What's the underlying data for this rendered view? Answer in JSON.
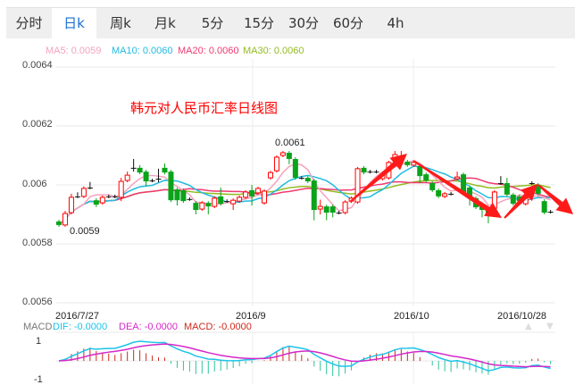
{
  "tabs": [
    {
      "label": "分时",
      "active": false
    },
    {
      "label": "日k",
      "active": true
    },
    {
      "label": "周k",
      "active": false
    },
    {
      "label": "月k",
      "active": false
    },
    {
      "label": "5分",
      "active": false
    },
    {
      "label": "15分",
      "active": false
    },
    {
      "label": "30分",
      "active": false
    },
    {
      "label": "60分",
      "active": false
    },
    {
      "label": "4h",
      "active": false
    }
  ],
  "legend": {
    "ma5": "MA5: 0.0059",
    "ma10": "MA10: 0.0060",
    "ma20": "MA20: 0.0060",
    "ma30": "MA30: 0.0060"
  },
  "colors": {
    "ma5": "#f5a3bd",
    "ma10": "#22bbe0",
    "ma20": "#ef3a72",
    "ma30": "#93bb1f",
    "up": "#ff0000",
    "down": "#0aa31a",
    "dif": "#1cc4ea",
    "dea": "#d428c8",
    "macd": "#d0281c",
    "arrow": "#ff1a1a",
    "active_tab": "#1a6fd0"
  },
  "title": "韩元对人民币汇率日线图",
  "chart_data": {
    "type": "candlestick",
    "title": "韩元对人民币汇率日线图",
    "yticks": [
      "0.0064",
      "0.0062",
      "0.006",
      "0.0058",
      "0.0056"
    ],
    "ylim": [
      0.0056,
      0.0064
    ],
    "xticks": [
      "2016/7/27",
      "2016/9",
      "2016/10",
      "2016/10/28"
    ],
    "annotations": {
      "high": "0.0061",
      "low": "0.0059"
    },
    "candles": [
      [
        0.005876,
        0.005882,
        0.005858,
        0.005864
      ],
      [
        0.005864,
        0.005912,
        0.005858,
        0.005903
      ],
      [
        0.005906,
        0.00597,
        0.0059,
        0.005958
      ],
      [
        0.005961,
        0.005975,
        0.005955,
        0.005961
      ],
      [
        0.005961,
        0.005995,
        0.005955,
        0.005988
      ],
      [
        0.005991,
        0.00601,
        0.005985,
        0.005991
      ],
      [
        0.005948,
        0.005955,
        0.005925,
        0.005933
      ],
      [
        0.005939,
        0.005964,
        0.005933,
        0.005958
      ],
      [
        0.005961,
        0.005967,
        0.005955,
        0.005961
      ],
      [
        0.005961,
        0.005967,
        0.005955,
        0.005961
      ],
      [
        0.005958,
        0.006024,
        0.005945,
        0.006012
      ],
      [
        0.006015,
        0.006045,
        0.006009,
        0.006033
      ],
      [
        0.006058,
        0.006088,
        0.006045,
        0.006058
      ],
      [
        0.006058,
        0.006067,
        0.006036,
        0.006042
      ],
      [
        0.006045,
        0.006051,
        0.005995,
        0.006012
      ],
      [
        0.006015,
        0.006021,
        0.006009,
        0.006015
      ],
      [
        0.006021,
        0.006055,
        0.006009,
        0.006021
      ],
      [
        0.006058,
        0.006073,
        0.006036,
        0.006042
      ],
      [
        0.006045,
        0.006051,
        0.005942,
        0.005948
      ],
      [
        0.005985,
        0.005991,
        0.00593,
        0.005948
      ],
      [
        0.005982,
        0.005988,
        0.005939,
        0.005945
      ],
      [
        0.005952,
        0.005958,
        0.005946,
        0.005952
      ],
      [
        0.005939,
        0.005945,
        0.0059,
        0.005915
      ],
      [
        0.005918,
        0.005945,
        0.005912,
        0.005939
      ],
      [
        0.005939,
        0.005945,
        0.0059,
        0.005927
      ],
      [
        0.005927,
        0.005961,
        0.005921,
        0.005955
      ],
      [
        0.005961,
        0.005991,
        0.00593,
        0.005936
      ],
      [
        0.005945,
        0.005951,
        0.005939,
        0.005945
      ],
      [
        0.005936,
        0.005954,
        0.005915,
        0.005948
      ],
      [
        0.005945,
        0.005964,
        0.005939,
        0.005958
      ],
      [
        0.005958,
        0.005982,
        0.005952,
        0.005976
      ],
      [
        0.005982,
        0.006,
        0.00593,
        0.005961
      ],
      [
        0.005973,
        0.005994,
        0.005967,
        0.005988
      ],
      [
        0.005939,
        0.005985,
        0.005933,
        0.005979
      ],
      [
        0.006024,
        0.006048,
        0.006018,
        0.006042
      ],
      [
        0.006048,
        0.0061,
        0.006042,
        0.006094
      ],
      [
        0.0061,
        0.006115,
        0.006094,
        0.006109
      ],
      [
        0.006109,
        0.006115,
        0.00607,
        0.006088
      ],
      [
        0.006088,
        0.006094,
        0.006018,
        0.006024
      ],
      [
        0.006024,
        0.00603,
        0.006018,
        0.006024
      ],
      [
        0.006024,
        0.00603,
        0.006006,
        0.006012
      ],
      [
        0.006015,
        0.006021,
        0.00588,
        0.005915
      ],
      [
        0.005918,
        0.00595,
        0.0059,
        0.005927
      ],
      [
        0.005927,
        0.005933,
        0.00588,
        0.005906
      ],
      [
        0.005927,
        0.005933,
        0.00589,
        0.005906
      ],
      [
        0.005906,
        0.005912,
        0.0059,
        0.005906
      ],
      [
        0.005906,
        0.005948,
        0.0059,
        0.005942
      ],
      [
        0.005945,
        0.005961,
        0.005939,
        0.005955
      ],
      [
        0.005942,
        0.006061,
        0.005936,
        0.006055
      ],
      [
        0.006058,
        0.006064,
        0.006036,
        0.006042
      ],
      [
        0.006045,
        0.006051,
        0.006039,
        0.006045
      ],
      [
        0.006045,
        0.006051,
        0.006039,
        0.006045
      ],
      [
        0.006021,
        0.006042,
        0.006015,
        0.006036
      ],
      [
        0.006024,
        0.006082,
        0.006018,
        0.006076
      ],
      [
        0.006091,
        0.006115,
        0.006085,
        0.006103
      ],
      [
        0.006082,
        0.006115,
        0.006076,
        0.006091
      ],
      [
        0.006079,
        0.006085,
        0.006061,
        0.006067
      ],
      [
        0.006067,
        0.006082,
        0.006061,
        0.006076
      ],
      [
        0.006064,
        0.00607,
        0.006006,
        0.00603
      ],
      [
        0.006036,
        0.006042,
        0.006009,
        0.006015
      ],
      [
        0.006006,
        0.006012,
        0.005976,
        0.005982
      ],
      [
        0.005982,
        0.005988,
        0.005955,
        0.005961
      ],
      [
        0.005961,
        0.005976,
        0.005955,
        0.00597
      ],
      [
        0.00597,
        0.005976,
        0.005964,
        0.00597
      ],
      [
        0.006021,
        0.006045,
        0.006015,
        0.006027
      ],
      [
        0.006036,
        0.006042,
        0.005964,
        0.00597
      ],
      [
        0.005991,
        0.005997,
        0.00593,
        0.005955
      ],
      [
        0.005955,
        0.005961,
        0.005918,
        0.005924
      ],
      [
        0.00593,
        0.005936,
        0.00589,
        0.005915
      ],
      [
        0.005921,
        0.005927,
        0.00587,
        0.005894
      ],
      [
        0.005921,
        0.005982,
        0.005915,
        0.005976
      ],
      [
        0.006006,
        0.00603,
        0.006,
        0.006006
      ],
      [
        0.006006,
        0.006024,
        0.005961,
        0.005967
      ],
      [
        0.005967,
        0.005973,
        0.00593,
        0.005936
      ],
      [
        0.005961,
        0.005967,
        0.005939,
        0.005945
      ],
      [
        0.005936,
        0.005961,
        0.00593,
        0.005955
      ],
      [
        0.006006,
        0.006012,
        0.006,
        0.006006
      ],
      [
        0.006,
        0.006006,
        0.005964,
        0.00597
      ],
      [
        0.005945,
        0.005951,
        0.0059,
        0.005906
      ],
      [
        0.005909,
        0.005915,
        0.005903,
        0.005909
      ]
    ],
    "macd": {
      "legend": {
        "dif": "DIF: -0.0000",
        "dea": "DEA: -0.0000",
        "macd": "MACD: -0.0000"
      },
      "label": "MACD",
      "yticks": [
        "1",
        "-1"
      ]
    }
  }
}
